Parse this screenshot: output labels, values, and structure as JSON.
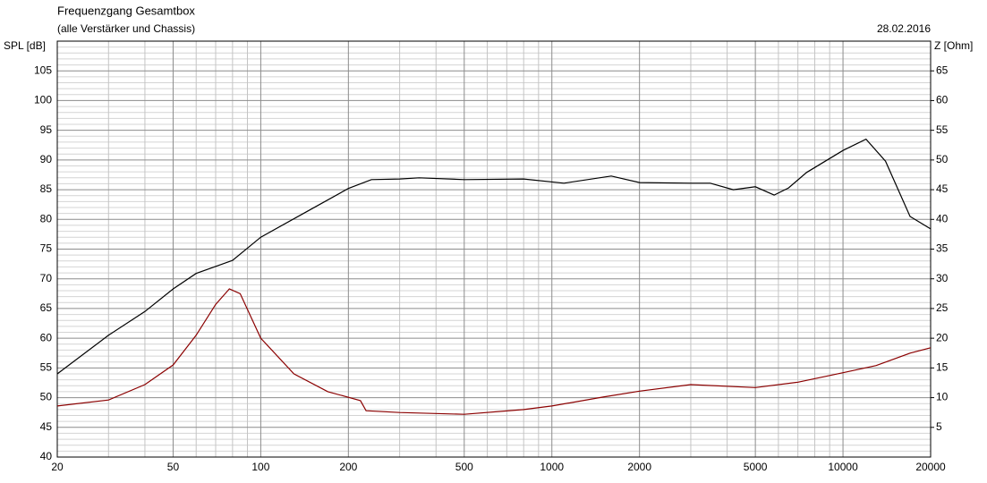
{
  "chart_data": {
    "type": "line",
    "title": "Frequenzgang Gesamtbox",
    "subtitle": "(alle Verstärker und Chassis)",
    "date": "28.02.2016",
    "ylabel": "SPL [dB]",
    "y2label": "Z [Ohm]",
    "xscale": "log",
    "xlim": [
      20,
      20000
    ],
    "xticks": [
      20,
      50,
      100,
      200,
      500,
      1000,
      2000,
      5000,
      10000,
      20000
    ],
    "xminorticks": [
      30,
      40,
      60,
      70,
      80,
      90,
      300,
      400,
      600,
      700,
      800,
      900,
      3000,
      4000,
      6000,
      7000,
      8000,
      9000
    ],
    "ylim": [
      40,
      110
    ],
    "yticks": [
      40,
      45,
      50,
      55,
      60,
      65,
      70,
      75,
      80,
      85,
      90,
      95,
      100,
      105
    ],
    "yminorticks": [
      41,
      42,
      43,
      44,
      46,
      47,
      48,
      49,
      51,
      52,
      53,
      54,
      56,
      57,
      58,
      59,
      61,
      62,
      63,
      64,
      66,
      67,
      68,
      69,
      71,
      72,
      73,
      74,
      76,
      77,
      78,
      79,
      81,
      82,
      83,
      84,
      86,
      87,
      88,
      89,
      91,
      92,
      93,
      94,
      96,
      97,
      98,
      99,
      101,
      102,
      103,
      104,
      106,
      107,
      108,
      109
    ],
    "y2lim": [
      0,
      70
    ],
    "y2ticks": [
      5,
      10,
      15,
      20,
      25,
      30,
      35,
      40,
      45,
      50,
      55,
      60,
      65
    ],
    "grid": true,
    "series": [
      {
        "name": "SPL",
        "color": "#000000",
        "x": [
          20,
          30,
          40,
          50,
          60,
          80,
          100,
          150,
          200,
          240,
          300,
          350,
          500,
          800,
          1100,
          1600,
          2000,
          3000,
          3500,
          4200,
          5000,
          5800,
          6500,
          7500,
          10000,
          12000,
          14000,
          17000,
          20000
        ],
        "values": [
          54.0,
          60.5,
          64.5,
          68.3,
          70.9,
          73.1,
          77.0,
          81.8,
          85.2,
          86.7,
          86.8,
          87.0,
          86.7,
          86.8,
          86.1,
          87.3,
          86.2,
          86.1,
          86.1,
          85.0,
          85.5,
          84.1,
          85.3,
          87.9,
          91.6,
          93.5,
          89.8,
          80.5,
          78.4
        ]
      },
      {
        "name": "Z",
        "color": "#8b0000",
        "axis": "y2",
        "x": [
          20,
          30,
          40,
          50,
          60,
          70,
          78,
          85,
          100,
          130,
          170,
          220,
          230,
          300,
          500,
          800,
          1000,
          1500,
          2000,
          3000,
          5000,
          7000,
          10000,
          13000,
          17000,
          20000
        ],
        "values": [
          8.6,
          9.6,
          12.2,
          15.5,
          20.5,
          25.7,
          28.3,
          27.5,
          20.0,
          14.0,
          11.0,
          9.5,
          7.8,
          7.5,
          7.2,
          8.0,
          8.6,
          10.1,
          11.1,
          12.2,
          11.7,
          12.6,
          14.2,
          15.4,
          17.5,
          18.4
        ]
      }
    ]
  }
}
